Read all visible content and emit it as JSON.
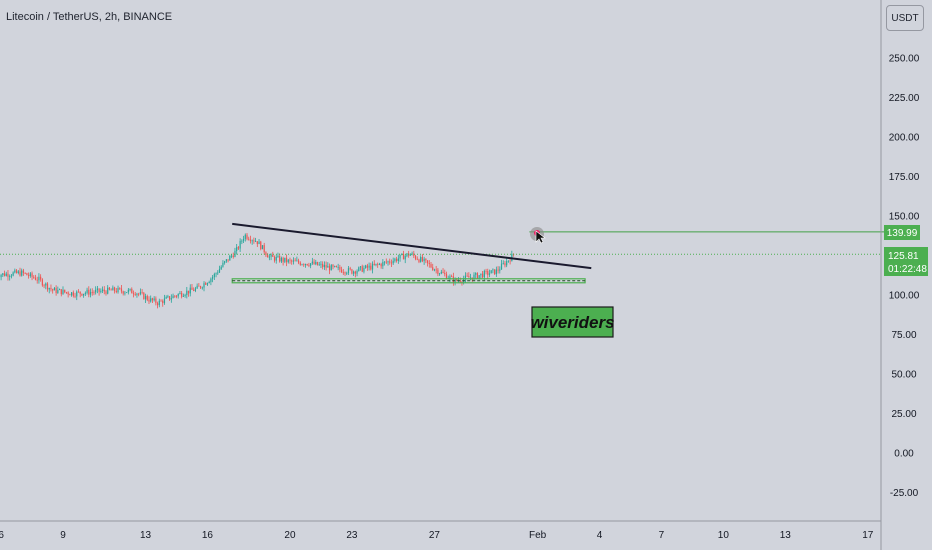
{
  "header": {
    "title": "Litecoin / TetherUS, 2h, BINANCE",
    "currency": "USDT"
  },
  "price_tags": {
    "target_price": "139.99",
    "last_price": "125.81",
    "countdown": "01:22:48"
  },
  "watermark": "wiveriders",
  "colors": {
    "background": "#d1d4dc",
    "candle_up": "#26a69a",
    "candle_down": "#ef5350",
    "trendline": "#1a1a2e",
    "support_line": "#4caf50",
    "target_line": "#43a047",
    "tag_green": "#4caf50",
    "watermark_bg": "#4caf50"
  },
  "chart_data": {
    "type": "candlestick",
    "y_ticks": [
      "250.00",
      "225.00",
      "200.00",
      "175.00",
      "150.00",
      "125.00",
      "100.00",
      "75.00",
      "50.00",
      "25.00",
      "0.00",
      "-25.00"
    ],
    "x_ticks": [
      "6",
      "9",
      "13",
      "16",
      "20",
      "23",
      "27",
      "Feb",
      "4",
      "7",
      "10",
      "13",
      "17"
    ],
    "ylim": [
      -37,
      268
    ],
    "price_path": [
      {
        "day": 6.0,
        "price": 113
      },
      {
        "day": 7.0,
        "price": 114
      },
      {
        "day": 7.8,
        "price": 110
      },
      {
        "day": 8.5,
        "price": 103
      },
      {
        "day": 9.5,
        "price": 101
      },
      {
        "day": 10.5,
        "price": 102
      },
      {
        "day": 11.5,
        "price": 103
      },
      {
        "day": 12.5,
        "price": 102
      },
      {
        "day": 13.2,
        "price": 97
      },
      {
        "day": 13.6,
        "price": 95
      },
      {
        "day": 14.5,
        "price": 100
      },
      {
        "day": 15.5,
        "price": 104
      },
      {
        "day": 16.3,
        "price": 112
      },
      {
        "day": 16.8,
        "price": 120
      },
      {
        "day": 17.4,
        "price": 128
      },
      {
        "day": 17.8,
        "price": 138
      },
      {
        "day": 18.4,
        "price": 134
      },
      {
        "day": 19.0,
        "price": 124
      },
      {
        "day": 20.0,
        "price": 121
      },
      {
        "day": 21.0,
        "price": 120
      },
      {
        "day": 22.0,
        "price": 117
      },
      {
        "day": 23.0,
        "price": 115
      },
      {
        "day": 24.0,
        "price": 118
      },
      {
        "day": 25.0,
        "price": 122
      },
      {
        "day": 25.8,
        "price": 126
      },
      {
        "day": 26.5,
        "price": 121
      },
      {
        "day": 27.2,
        "price": 115
      },
      {
        "day": 28.0,
        "price": 109
      },
      {
        "day": 29.0,
        "price": 112
      },
      {
        "day": 30.0,
        "price": 115
      },
      {
        "day": 30.8,
        "price": 125
      }
    ],
    "trendline": {
      "start": {
        "day": 17.2,
        "price": 145
      },
      "end": {
        "day": 34.6,
        "price": 117
      }
    },
    "support_zone": {
      "start_day": 17.2,
      "end_day": 34.3,
      "price": 109
    },
    "target_line": {
      "start_day": 31.6,
      "price": 139.99
    },
    "last_price": 125.81
  }
}
